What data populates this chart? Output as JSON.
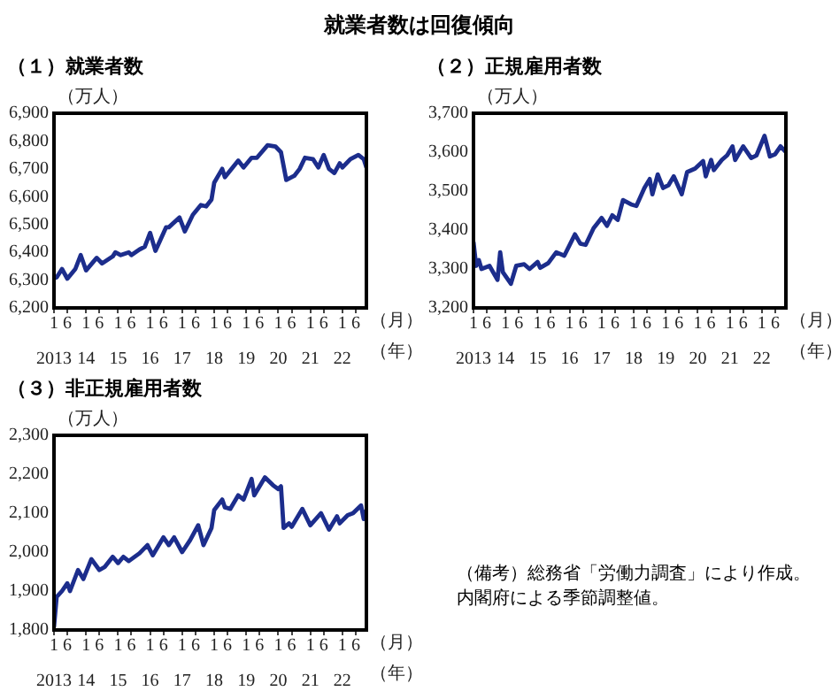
{
  "chart_data": [
    {
      "type": "other",
      "title": "就業者数は回復傾向",
      "annotations": [
        "（備考）総務省「労働力調査」により作成。内閣府による季節調整値。"
      ]
    },
    {
      "type": "line",
      "title": "（１）就業者数",
      "ylabel": "（万人）",
      "xlabel": "（月）",
      "x2label": "（年）",
      "x": [
        "2013-01",
        "2013-02",
        "2013-04",
        "2013-06",
        "2013-09",
        "2013-11",
        "2014-01",
        "2014-05",
        "2014-07",
        "2014-11",
        "2014-12",
        "2015-02",
        "2015-05",
        "2015-06",
        "2015-09",
        "2015-11",
        "2016-01",
        "2016-03",
        "2016-07",
        "2016-08",
        "2016-12",
        "2017-02",
        "2017-05",
        "2017-08",
        "2017-10",
        "2017-12",
        "2018-01",
        "2018-04",
        "2018-05",
        "2018-10",
        "2018-12",
        "2019-03",
        "2019-05",
        "2019-09",
        "2019-12",
        "2020-02",
        "2020-04",
        "2020-07",
        "2020-09",
        "2020-11",
        "2021-02",
        "2021-04",
        "2021-06",
        "2021-08",
        "2021-10",
        "2021-12",
        "2022-01",
        "2022-04",
        "2022-07",
        "2022-09",
        "2022-10"
      ],
      "series": [
        {
          "color": "#1c2d8c",
          "values": [
            6307,
            6310,
            6340,
            6305,
            6340,
            6390,
            6335,
            6380,
            6360,
            6385,
            6400,
            6390,
            6400,
            6390,
            6410,
            6420,
            6470,
            6405,
            6490,
            6490,
            6525,
            6475,
            6535,
            6570,
            6565,
            6590,
            6650,
            6700,
            6670,
            6730,
            6705,
            6740,
            6740,
            6785,
            6780,
            6760,
            6660,
            6675,
            6700,
            6740,
            6735,
            6705,
            6750,
            6700,
            6685,
            6720,
            6705,
            6735,
            6750,
            6735,
            6705
          ]
        }
      ],
      "xlim": [
        "2013-01",
        "2022-10"
      ],
      "xticks": [
        {
          "value": "2013-01",
          "label": "1"
        },
        {
          "value": "2013-06",
          "label": "6"
        },
        {
          "value": "2014-01",
          "label": "1"
        },
        {
          "value": "2014-06",
          "label": "6"
        },
        {
          "value": "2015-01",
          "label": "1"
        },
        {
          "value": "2015-06",
          "label": "6"
        },
        {
          "value": "2016-01",
          "label": "1"
        },
        {
          "value": "2016-06",
          "label": "6"
        },
        {
          "value": "2017-01",
          "label": "1"
        },
        {
          "value": "2017-06",
          "label": "6"
        },
        {
          "value": "2018-01",
          "label": "1"
        },
        {
          "value": "2018-06",
          "label": "6"
        },
        {
          "value": "2019-01",
          "label": "1"
        },
        {
          "value": "2019-06",
          "label": "6"
        },
        {
          "value": "2020-01",
          "label": "1"
        },
        {
          "value": "2020-06",
          "label": "6"
        },
        {
          "value": "2021-01",
          "label": "1"
        },
        {
          "value": "2021-06",
          "label": "6"
        },
        {
          "value": "2022-01",
          "label": "1"
        },
        {
          "value": "2022-06",
          "label": "6"
        }
      ],
      "x2lim": [
        "2013-01",
        "2022-10"
      ],
      "x2ticks": [
        {
          "value": "2013-01",
          "label": "2013"
        },
        {
          "value": "2014-01",
          "label": "14"
        },
        {
          "value": "2015-01",
          "label": "15"
        },
        {
          "value": "2016-01",
          "label": "16"
        },
        {
          "value": "2017-01",
          "label": "17"
        },
        {
          "value": "2018-01",
          "label": "18"
        },
        {
          "value": "2019-01",
          "label": "19"
        },
        {
          "value": "2020-01",
          "label": "20"
        },
        {
          "value": "2021-01",
          "label": "21"
        },
        {
          "value": "2022-01",
          "label": "22"
        }
      ],
      "ylim": [
        6200,
        6900
      ],
      "yticks": [
        {
          "value": 6200,
          "label": "6,200"
        },
        {
          "value": 6300,
          "label": "6,300"
        },
        {
          "value": 6400,
          "label": "6,400"
        },
        {
          "value": 6500,
          "label": "6,500"
        },
        {
          "value": 6600,
          "label": "6,600"
        },
        {
          "value": 6700,
          "label": "6,700"
        },
        {
          "value": 6800,
          "label": "6,800"
        },
        {
          "value": 6900,
          "label": "6,900"
        }
      ]
    },
    {
      "type": "line",
      "title": "（２）正規雇用者数",
      "ylabel": "（万人）",
      "xlabel": "（月）",
      "x2label": "（年）",
      "x": [
        "2013-01",
        "2013-02",
        "2013-03",
        "2013-04",
        "2013-07",
        "2013-10",
        "2013-11",
        "2013-12",
        "2014-03",
        "2014-05",
        "2014-08",
        "2014-10",
        "2015-01",
        "2015-02",
        "2015-05",
        "2015-08",
        "2015-11",
        "2016-03",
        "2016-05",
        "2016-07",
        "2016-10",
        "2017-01",
        "2017-03",
        "2017-05",
        "2017-07",
        "2017-09",
        "2017-12",
        "2018-02",
        "2018-05",
        "2018-07",
        "2018-08",
        "2018-10",
        "2018-12",
        "2019-02",
        "2019-04",
        "2019-07",
        "2019-09",
        "2019-12",
        "2020-03",
        "2020-04",
        "2020-06",
        "2020-07",
        "2020-10",
        "2020-12",
        "2021-02",
        "2021-03",
        "2021-06",
        "2021-09",
        "2021-11",
        "2022-02",
        "2022-04",
        "2022-06",
        "2022-08",
        "2022-10"
      ],
      "series": [
        {
          "color": "#1c2d8c",
          "values": [
            3369,
            3308,
            3323,
            3300,
            3308,
            3272,
            3343,
            3292,
            3262,
            3308,
            3312,
            3300,
            3318,
            3303,
            3315,
            3343,
            3334,
            3389,
            3365,
            3362,
            3405,
            3431,
            3411,
            3438,
            3426,
            3477,
            3466,
            3462,
            3508,
            3531,
            3492,
            3543,
            3508,
            3515,
            3538,
            3492,
            3549,
            3558,
            3577,
            3538,
            3580,
            3554,
            3580,
            3592,
            3615,
            3580,
            3615,
            3585,
            3592,
            3642,
            3589,
            3595,
            3615,
            3600
          ]
        }
      ],
      "xlim": [
        "2013-01",
        "2022-10"
      ],
      "xticks": [
        {
          "value": "2013-01",
          "label": "1"
        },
        {
          "value": "2013-06",
          "label": "6"
        },
        {
          "value": "2014-01",
          "label": "1"
        },
        {
          "value": "2014-06",
          "label": "6"
        },
        {
          "value": "2015-01",
          "label": "1"
        },
        {
          "value": "2015-06",
          "label": "6"
        },
        {
          "value": "2016-01",
          "label": "1"
        },
        {
          "value": "2016-06",
          "label": "6"
        },
        {
          "value": "2017-01",
          "label": "1"
        },
        {
          "value": "2017-06",
          "label": "6"
        },
        {
          "value": "2018-01",
          "label": "1"
        },
        {
          "value": "2018-06",
          "label": "6"
        },
        {
          "value": "2019-01",
          "label": "1"
        },
        {
          "value": "2019-06",
          "label": "6"
        },
        {
          "value": "2020-01",
          "label": "1"
        },
        {
          "value": "2020-06",
          "label": "6"
        },
        {
          "value": "2021-01",
          "label": "1"
        },
        {
          "value": "2021-06",
          "label": "6"
        },
        {
          "value": "2022-01",
          "label": "1"
        },
        {
          "value": "2022-06",
          "label": "6"
        }
      ],
      "x2lim": [
        "2013-01",
        "2022-10"
      ],
      "x2ticks": [
        {
          "value": "2013-01",
          "label": "2013"
        },
        {
          "value": "2014-01",
          "label": "14"
        },
        {
          "value": "2015-01",
          "label": "15"
        },
        {
          "value": "2016-01",
          "label": "16"
        },
        {
          "value": "2017-01",
          "label": "17"
        },
        {
          "value": "2018-01",
          "label": "18"
        },
        {
          "value": "2019-01",
          "label": "19"
        },
        {
          "value": "2020-01",
          "label": "20"
        },
        {
          "value": "2021-01",
          "label": "21"
        },
        {
          "value": "2022-01",
          "label": "22"
        }
      ],
      "ylim": [
        3200,
        3700
      ],
      "yticks": [
        {
          "value": 3200,
          "label": "3,200"
        },
        {
          "value": 3300,
          "label": "3,300"
        },
        {
          "value": 3400,
          "label": "3,400"
        },
        {
          "value": 3500,
          "label": "3,500"
        },
        {
          "value": 3600,
          "label": "3,600"
        },
        {
          "value": 3700,
          "label": "3,700"
        }
      ]
    },
    {
      "type": "line",
      "title": "（３）非正規雇用者数",
      "ylabel": "（万人）",
      "xlabel": "（月）",
      "x2label": "（年）",
      "x": [
        "2013-01",
        "2013-02",
        "2013-04",
        "2013-06",
        "2013-07",
        "2013-10",
        "2013-12",
        "2014-03",
        "2014-06",
        "2014-08",
        "2014-11",
        "2015-01",
        "2015-03",
        "2015-05",
        "2015-09",
        "2015-12",
        "2016-02",
        "2016-06",
        "2016-08",
        "2016-10",
        "2017-01",
        "2017-04",
        "2017-07",
        "2017-09",
        "2017-12",
        "2018-01",
        "2018-04",
        "2018-05",
        "2018-07",
        "2018-10",
        "2018-12",
        "2019-03",
        "2019-04",
        "2019-08",
        "2019-11",
        "2020-01",
        "2020-02",
        "2020-03",
        "2020-05",
        "2020-06",
        "2020-10",
        "2021-01",
        "2021-05",
        "2021-08",
        "2021-11",
        "2021-12",
        "2022-03",
        "2022-05",
        "2022-08",
        "2022-09",
        "2022-10"
      ],
      "series": [
        {
          "color": "#1c2d8c",
          "values": [
            1808,
            1885,
            1900,
            1920,
            1900,
            1954,
            1931,
            1982,
            1954,
            1962,
            1988,
            1972,
            1988,
            1977,
            1997,
            2018,
            1992,
            2038,
            2018,
            2038,
            2000,
            2031,
            2069,
            2018,
            2062,
            2108,
            2135,
            2115,
            2111,
            2146,
            2135,
            2188,
            2146,
            2192,
            2172,
            2162,
            2169,
            2062,
            2074,
            2065,
            2111,
            2069,
            2100,
            2058,
            2092,
            2074,
            2095,
            2100,
            2120,
            2085,
            2108
          ]
        }
      ],
      "xlim": [
        "2013-01",
        "2022-10"
      ],
      "xticks": [
        {
          "value": "2013-01",
          "label": "1"
        },
        {
          "value": "2013-06",
          "label": "6"
        },
        {
          "value": "2014-01",
          "label": "1"
        },
        {
          "value": "2014-06",
          "label": "6"
        },
        {
          "value": "2015-01",
          "label": "1"
        },
        {
          "value": "2015-06",
          "label": "6"
        },
        {
          "value": "2016-01",
          "label": "1"
        },
        {
          "value": "2016-06",
          "label": "6"
        },
        {
          "value": "2017-01",
          "label": "1"
        },
        {
          "value": "2017-06",
          "label": "6"
        },
        {
          "value": "2018-01",
          "label": "1"
        },
        {
          "value": "2018-06",
          "label": "6"
        },
        {
          "value": "2019-01",
          "label": "1"
        },
        {
          "value": "2019-06",
          "label": "6"
        },
        {
          "value": "2020-01",
          "label": "1"
        },
        {
          "value": "2020-06",
          "label": "6"
        },
        {
          "value": "2021-01",
          "label": "1"
        },
        {
          "value": "2021-06",
          "label": "6"
        },
        {
          "value": "2022-01",
          "label": "1"
        },
        {
          "value": "2022-06",
          "label": "6"
        }
      ],
      "x2lim": [
        "2013-01",
        "2022-10"
      ],
      "x2ticks": [
        {
          "value": "2013-01",
          "label": "2013"
        },
        {
          "value": "2014-01",
          "label": "14"
        },
        {
          "value": "2015-01",
          "label": "15"
        },
        {
          "value": "2016-01",
          "label": "16"
        },
        {
          "value": "2017-01",
          "label": "17"
        },
        {
          "value": "2018-01",
          "label": "18"
        },
        {
          "value": "2019-01",
          "label": "19"
        },
        {
          "value": "2020-01",
          "label": "20"
        },
        {
          "value": "2021-01",
          "label": "21"
        },
        {
          "value": "2022-01",
          "label": "22"
        }
      ],
      "ylim": [
        1800,
        2300
      ],
      "yticks": [
        {
          "value": 1800,
          "label": "1,800"
        },
        {
          "value": 1900,
          "label": "1,900"
        },
        {
          "value": 2000,
          "label": "2,000"
        },
        {
          "value": 2100,
          "label": "2,100"
        },
        {
          "value": 2200,
          "label": "2,200"
        },
        {
          "value": 2300,
          "label": "2,300"
        }
      ]
    }
  ]
}
